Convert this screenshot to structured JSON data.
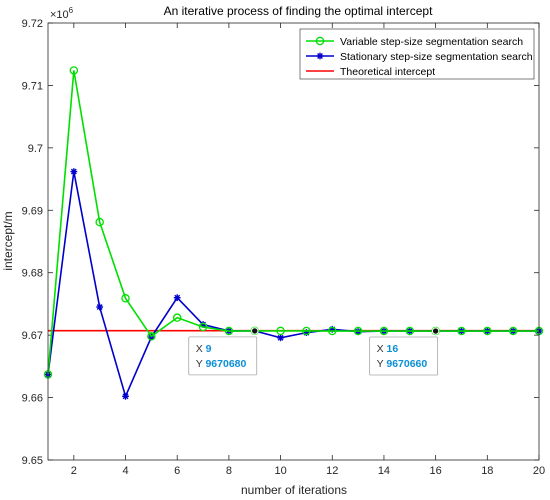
{
  "chart_data": {
    "type": "line",
    "title": "An iterative process of finding the optimal intercept",
    "xlabel": "number of iterations",
    "ylabel": "intercept/m",
    "y_exponent_label": "×10",
    "y_exponent_power": "6",
    "xlim": [
      1,
      20
    ],
    "ylim": [
      9.65,
      9.72
    ],
    "xticks": [
      2,
      4,
      6,
      8,
      10,
      12,
      14,
      16,
      18,
      20
    ],
    "xtick_labels": [
      "2",
      "4",
      "6",
      "8",
      "10",
      "12",
      "14",
      "16",
      "18",
      "20"
    ],
    "yticks": [
      9.65,
      9.66,
      9.67,
      9.68,
      9.69,
      9.7,
      9.71,
      9.72
    ],
    "ytick_labels": [
      "9.65",
      "9.66",
      "9.67",
      "9.68",
      "9.69",
      "9.7",
      "9.71",
      "9.72"
    ],
    "grid": false,
    "legend_position": "top-right",
    "x": [
      1,
      2,
      3,
      4,
      5,
      6,
      7,
      8,
      9,
      10,
      11,
      12,
      13,
      14,
      15,
      16,
      17,
      18,
      19,
      20
    ],
    "series": [
      {
        "name": "Variable step-size segmentation search",
        "color": "#00e000",
        "marker": "circle",
        "values": [
          9.6637,
          9.7124,
          9.6881,
          9.6759,
          9.6698,
          9.6728,
          9.6713,
          9.67066,
          9.67068,
          9.67068,
          9.67067,
          9.67066,
          9.67066,
          9.67066,
          9.67066,
          9.67066,
          9.67066,
          9.67066,
          9.67066,
          9.67066
        ]
      },
      {
        "name": "Stationary step-size segmentation search",
        "color": "#0000cc",
        "marker": "asterisk",
        "values": [
          9.6637,
          9.6962,
          9.6745,
          9.6602,
          9.6697,
          9.676,
          9.6717,
          9.67068,
          9.67068,
          9.66958,
          9.6704,
          9.67094,
          9.67055,
          9.67066,
          9.67066,
          9.67066,
          9.67066,
          9.67066,
          9.67066,
          9.67066
        ]
      },
      {
        "name": "Theoretical intercept",
        "color": "#ff0000",
        "marker": "none",
        "values": [
          9.67072,
          9.67072,
          9.67072,
          9.67072,
          9.67072,
          9.67072,
          9.67072,
          9.67072,
          9.67072,
          9.67072,
          9.67072,
          9.67072,
          9.67072,
          9.67072,
          9.67072,
          9.67072,
          9.67072,
          9.67072,
          9.67072,
          9.67072
        ]
      }
    ],
    "datatips": [
      {
        "x": 9,
        "y": 9.67068,
        "x_label": "X",
        "x_text": "9",
        "y_label": "Y",
        "y_text": "9670680"
      },
      {
        "x": 16,
        "y": 9.67066,
        "x_label": "X",
        "x_text": "16",
        "y_label": "Y",
        "y_text": "9670660"
      }
    ]
  }
}
